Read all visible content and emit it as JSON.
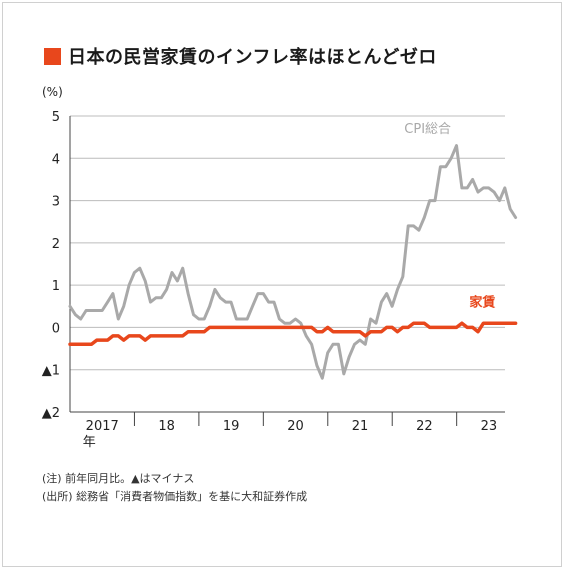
{
  "title": "日本の民営家賃のインフレ率はほとんどゼロ",
  "colors": {
    "accent": "#e8471c",
    "cpi": "#a9a9a9",
    "rent": "#e8471c",
    "grid": "#bcbcbc",
    "axis": "#444444"
  },
  "notes": [
    "(注) 前年同月比。▲はマイナス",
    "(出所) 総務省「消費者物価指数」を基に大和証券作成"
  ],
  "chart_data": {
    "type": "line",
    "ylabel": "(%)",
    "ylim": [
      -2,
      5
    ],
    "yticks": [
      {
        "value": 5,
        "label": "5"
      },
      {
        "value": 4,
        "label": "4"
      },
      {
        "value": 3,
        "label": "3"
      },
      {
        "value": 2,
        "label": "2"
      },
      {
        "value": 1,
        "label": "1"
      },
      {
        "value": 0,
        "label": "0"
      },
      {
        "value": -1,
        "label": "▲1"
      },
      {
        "value": -2,
        "label": "▲2"
      }
    ],
    "x_start": 2017.0,
    "x_step": 0.0833,
    "xlim": [
      2017.0,
      2023.75
    ],
    "xticks": [
      {
        "value": 2017.5,
        "label": "2017",
        "sublabel": "年"
      },
      {
        "value": 2018.5,
        "label": "18"
      },
      {
        "value": 2019.5,
        "label": "19"
      },
      {
        "value": 2020.5,
        "label": "20"
      },
      {
        "value": 2021.5,
        "label": "21"
      },
      {
        "value": 2022.5,
        "label": "22"
      },
      {
        "value": 2023.5,
        "label": "23"
      }
    ],
    "xdividers": [
      2018,
      2019,
      2020,
      2021,
      2022,
      2023
    ],
    "series": [
      {
        "name": "CPI総合",
        "color": "#a9a9a9",
        "values": [
          0.5,
          0.3,
          0.2,
          0.4,
          0.4,
          0.4,
          0.4,
          0.6,
          0.8,
          0.2,
          0.5,
          1.0,
          1.3,
          1.4,
          1.1,
          0.6,
          0.7,
          0.7,
          0.9,
          1.3,
          1.1,
          1.4,
          0.8,
          0.3,
          0.2,
          0.2,
          0.5,
          0.9,
          0.7,
          0.6,
          0.6,
          0.2,
          0.2,
          0.2,
          0.5,
          0.8,
          0.8,
          0.6,
          0.6,
          0.2,
          0.1,
          0.1,
          0.2,
          0.1,
          -0.2,
          -0.4,
          -0.9,
          -1.2,
          -0.6,
          -0.4,
          -0.4,
          -1.1,
          -0.7,
          -0.4,
          -0.3,
          -0.4,
          0.2,
          0.1,
          0.6,
          0.8,
          0.5,
          0.9,
          1.2,
          2.4,
          2.4,
          2.3,
          2.6,
          3.0,
          3.0,
          3.8,
          3.8,
          4.0,
          4.3,
          3.3,
          3.3,
          3.5,
          3.2,
          3.3,
          3.3,
          3.2,
          3.0,
          3.3,
          2.8,
          2.6
        ]
      },
      {
        "name": "家賃",
        "color": "#e8471c",
        "values": [
          -0.4,
          -0.4,
          -0.4,
          -0.4,
          -0.4,
          -0.3,
          -0.3,
          -0.3,
          -0.2,
          -0.2,
          -0.3,
          -0.2,
          -0.2,
          -0.2,
          -0.3,
          -0.2,
          -0.2,
          -0.2,
          -0.2,
          -0.2,
          -0.2,
          -0.2,
          -0.1,
          -0.1,
          -0.1,
          -0.1,
          0.0,
          0.0,
          0.0,
          0.0,
          0.0,
          0.0,
          0.0,
          0.0,
          0.0,
          0.0,
          0.0,
          0.0,
          0.0,
          0.0,
          0.0,
          0.0,
          0.0,
          0.0,
          0.0,
          0.0,
          -0.1,
          -0.1,
          0.0,
          -0.1,
          -0.1,
          -0.1,
          -0.1,
          -0.1,
          -0.1,
          -0.2,
          -0.1,
          -0.1,
          -0.1,
          0.0,
          0.0,
          -0.1,
          0.0,
          0.0,
          0.1,
          0.1,
          0.1,
          0.0,
          0.0,
          0.0,
          0.0,
          0.0,
          0.0,
          0.1,
          0.0,
          0.0,
          -0.1,
          0.1,
          0.1,
          0.1,
          0.1,
          0.1,
          0.1,
          0.1
        ]
      }
    ]
  }
}
